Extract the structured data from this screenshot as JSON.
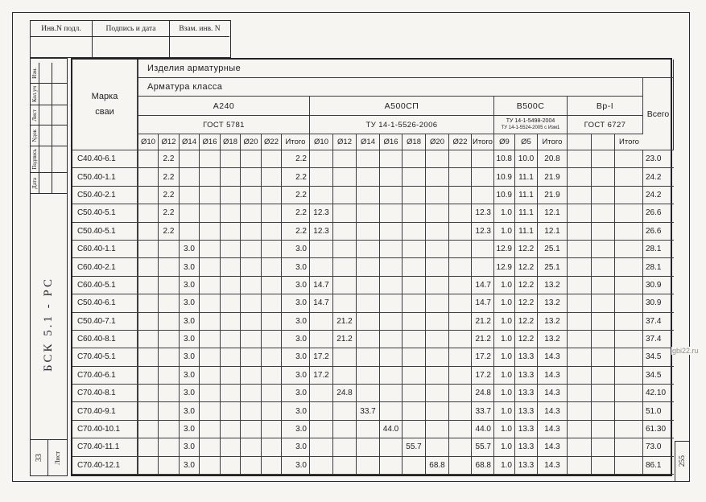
{
  "stamp_top": {
    "cells": [
      "Инв.N подл.",
      "Подпись и дата",
      "Взам. инв. N"
    ]
  },
  "stamp_side": {
    "fields": [
      "Изм.",
      "Кол.уч",
      "Лист",
      "Nдок",
      "Подпись",
      "Дата"
    ],
    "doc_code": "БСК 5.1 - РС",
    "sheet_label": "Лист",
    "sheet_number": "33"
  },
  "watermark": "gbi22.ru",
  "page_number": "255",
  "table": {
    "mark_header": "Марка сваи",
    "products_header": "Изделия арматурные",
    "class_header": "Арматура класса",
    "total_header": "Всего",
    "groups": [
      {
        "name": "А240",
        "standards": [
          "ГОСТ 5781"
        ],
        "cols": [
          "Ø10",
          "Ø12",
          "Ø14",
          "Ø16",
          "Ø18",
          "Ø20",
          "Ø22",
          "Итого"
        ]
      },
      {
        "name": "А500СП",
        "standards": [
          "ТУ 14-1-5526-2006"
        ],
        "cols": [
          "Ø10",
          "Ø12",
          "Ø14",
          "Ø16",
          "Ø18",
          "Ø20",
          "Ø22",
          "Итого"
        ]
      },
      {
        "name": "В500С",
        "standards": [
          "ТУ 14-1-5498-2004",
          "ТУ 14-1-5524-2005 с Изм1"
        ],
        "cols": [
          "Ø9",
          "Ø5",
          "Итого"
        ]
      },
      {
        "name": "Вр-I",
        "standards": [
          "ГОСТ 6727"
        ],
        "cols": [
          "",
          "",
          "Итого"
        ]
      }
    ],
    "rows": [
      {
        "mark": "С40.40-6.1",
        "cells": [
          "",
          "2.2",
          "",
          "",
          "",
          "",
          "",
          "2.2",
          "",
          "",
          "",
          "",
          "",
          "",
          "",
          "",
          "10.8",
          "10.0",
          "20.8",
          "",
          "",
          ""
        ],
        "total": "23.0"
      },
      {
        "mark": "С50.40-1.1",
        "cells": [
          "",
          "2.2",
          "",
          "",
          "",
          "",
          "",
          "2.2",
          "",
          "",
          "",
          "",
          "",
          "",
          "",
          "",
          "10.9",
          "11.1",
          "21.9",
          "",
          "",
          ""
        ],
        "total": "24.2"
      },
      {
        "mark": "С50.40-2.1",
        "cells": [
          "",
          "2.2",
          "",
          "",
          "",
          "",
          "",
          "2.2",
          "",
          "",
          "",
          "",
          "",
          "",
          "",
          "",
          "10.9",
          "11.1",
          "21.9",
          "",
          "",
          ""
        ],
        "total": "24.2"
      },
      {
        "mark": "С50.40-5.1",
        "cells": [
          "",
          "2.2",
          "",
          "",
          "",
          "",
          "",
          "2.2",
          "12.3",
          "",
          "",
          "",
          "",
          "",
          "",
          "12.3",
          "1.0",
          "11.1",
          "12.1",
          "",
          "",
          ""
        ],
        "total": "26.6"
      },
      {
        "mark": "С50.40-5.1",
        "cells": [
          "",
          "2.2",
          "",
          "",
          "",
          "",
          "",
          "2.2",
          "12.3",
          "",
          "",
          "",
          "",
          "",
          "",
          "12.3",
          "1.0",
          "11.1",
          "12.1",
          "",
          "",
          ""
        ],
        "total": "26.6"
      },
      {
        "mark": "С60.40-1.1",
        "cells": [
          "",
          "",
          "3.0",
          "",
          "",
          "",
          "",
          "3.0",
          "",
          "",
          "",
          "",
          "",
          "",
          "",
          "",
          "12.9",
          "12.2",
          "25.1",
          "",
          "",
          ""
        ],
        "total": "28.1"
      },
      {
        "mark": "С60.40-2.1",
        "cells": [
          "",
          "",
          "3.0",
          "",
          "",
          "",
          "",
          "3.0",
          "",
          "",
          "",
          "",
          "",
          "",
          "",
          "",
          "12.9",
          "12.2",
          "25.1",
          "",
          "",
          ""
        ],
        "total": "28.1"
      },
      {
        "mark": "С60.40-5.1",
        "cells": [
          "",
          "",
          "3.0",
          "",
          "",
          "",
          "",
          "3.0",
          "14.7",
          "",
          "",
          "",
          "",
          "",
          "",
          "14.7",
          "1.0",
          "12.2",
          "13.2",
          "",
          "",
          ""
        ],
        "total": "30.9"
      },
      {
        "mark": "С50.40-6.1",
        "cells": [
          "",
          "",
          "3.0",
          "",
          "",
          "",
          "",
          "3.0",
          "14.7",
          "",
          "",
          "",
          "",
          "",
          "",
          "14.7",
          "1.0",
          "12.2",
          "13.2",
          "",
          "",
          ""
        ],
        "total": "30.9"
      },
      {
        "mark": "С50.40-7.1",
        "cells": [
          "",
          "",
          "3.0",
          "",
          "",
          "",
          "",
          "3.0",
          "",
          "21.2",
          "",
          "",
          "",
          "",
          "",
          "21.2",
          "1.0",
          "12.2",
          "13.2",
          "",
          "",
          ""
        ],
        "total": "37.4"
      },
      {
        "mark": "С60.40-8.1",
        "cells": [
          "",
          "",
          "3.0",
          "",
          "",
          "",
          "",
          "3.0",
          "",
          "21.2",
          "",
          "",
          "",
          "",
          "",
          "21.2",
          "1.0",
          "12.2",
          "13.2",
          "",
          "",
          ""
        ],
        "total": "37.4"
      },
      {
        "mark": "С70.40-5.1",
        "cells": [
          "",
          "",
          "3.0",
          "",
          "",
          "",
          "",
          "3.0",
          "17.2",
          "",
          "",
          "",
          "",
          "",
          "",
          "17.2",
          "1.0",
          "13.3",
          "14.3",
          "",
          "",
          ""
        ],
        "total": "34.5"
      },
      {
        "mark": "С70.40-6.1",
        "cells": [
          "",
          "",
          "3.0",
          "",
          "",
          "",
          "",
          "3.0",
          "17.2",
          "",
          "",
          "",
          "",
          "",
          "",
          "17.2",
          "1.0",
          "13.3",
          "14.3",
          "",
          "",
          ""
        ],
        "total": "34.5"
      },
      {
        "mark": "С70.40-8.1",
        "cells": [
          "",
          "",
          "3.0",
          "",
          "",
          "",
          "",
          "3.0",
          "",
          "24.8",
          "",
          "",
          "",
          "",
          "",
          "24.8",
          "1.0",
          "13.3",
          "14.3",
          "",
          "",
          ""
        ],
        "total": "42.10"
      },
      {
        "mark": "С70.40-9.1",
        "cells": [
          "",
          "",
          "3.0",
          "",
          "",
          "",
          "",
          "3.0",
          "",
          "",
          "33.7",
          "",
          "",
          "",
          "",
          "33.7",
          "1.0",
          "13.3",
          "14.3",
          "",
          "",
          ""
        ],
        "total": "51.0"
      },
      {
        "mark": "С70.40-10.1",
        "cells": [
          "",
          "",
          "3.0",
          "",
          "",
          "",
          "",
          "3.0",
          "",
          "",
          "",
          "44.0",
          "",
          "",
          "",
          "44.0",
          "1.0",
          "13.3",
          "14.3",
          "",
          "",
          ""
        ],
        "total": "61.30"
      },
      {
        "mark": "С70.40-11.1",
        "cells": [
          "",
          "",
          "3.0",
          "",
          "",
          "",
          "",
          "3.0",
          "",
          "",
          "",
          "",
          "55.7",
          "",
          "",
          "55.7",
          "1.0",
          "13.3",
          "14.3",
          "",
          "",
          ""
        ],
        "total": "73.0"
      },
      {
        "mark": "С70.40-12.1",
        "cells": [
          "",
          "",
          "3.0",
          "",
          "",
          "",
          "",
          "3.0",
          "",
          "",
          "",
          "",
          "",
          "68.8",
          "",
          "68.8",
          "1.0",
          "13.3",
          "14.3",
          "",
          "",
          ""
        ],
        "total": "86.1"
      }
    ]
  }
}
